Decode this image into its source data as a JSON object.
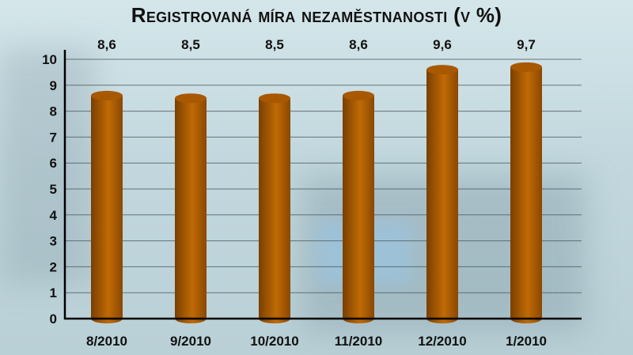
{
  "chart_data": {
    "type": "bar",
    "title": "Registrovaná míra nezaměstnanosti (v %)",
    "categories": [
      "8/2010",
      "9/2010",
      "10/2010",
      "11/2010",
      "12/2010",
      "1/2010"
    ],
    "values": [
      8.6,
      8.5,
      8.5,
      8.6,
      9.6,
      9.7
    ],
    "data_labels": [
      "8,6",
      "8,5",
      "8,5",
      "8,6",
      "9,6",
      "9,7"
    ],
    "ylim": [
      0,
      10
    ],
    "yticks": [
      "0",
      "1",
      "2",
      "3",
      "4",
      "5",
      "6",
      "7",
      "8",
      "9",
      "10"
    ],
    "grid": true,
    "bar_style": "3d-cylinder",
    "colors": {
      "bar": "#b35f00",
      "bar_dark": "#7a3f00",
      "grid": "#4a5a60"
    }
  }
}
